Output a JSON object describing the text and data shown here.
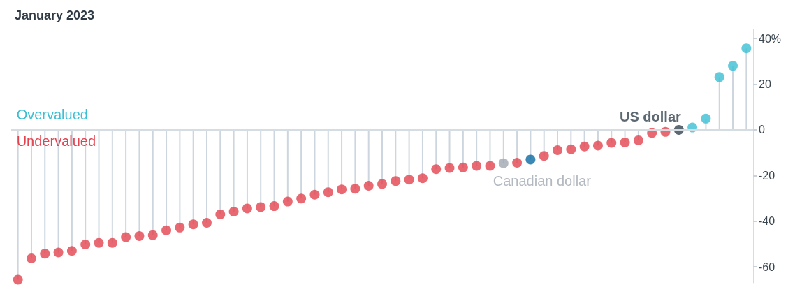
{
  "chart_data": {
    "type": "lollipop",
    "title": "January 2023",
    "categories": [
      null,
      null,
      null,
      null,
      null,
      null,
      null,
      null,
      null,
      null,
      null,
      null,
      null,
      null,
      null,
      null,
      null,
      null,
      null,
      null,
      null,
      null,
      null,
      null,
      null,
      null,
      null,
      null,
      null,
      null,
      null,
      null,
      null,
      null,
      null,
      null,
      null,
      null,
      null,
      null,
      null,
      null,
      null,
      null,
      null,
      null,
      null,
      null,
      null,
      null,
      null,
      null,
      null,
      null,
      null
    ],
    "series": [
      {
        "values": [
          -65.6,
          -56.3,
          -54.2,
          -53.7,
          -53.0,
          -50.2,
          -49.5,
          -49.5,
          -47.0,
          -46.5,
          -46.1,
          -44.0,
          -42.8,
          -41.4,
          -40.7,
          -37.0,
          -35.8,
          -34.4,
          -33.8,
          -33.4,
          -31.4,
          -30.1,
          -28.4,
          -27.3,
          -26.1,
          -25.8,
          -24.5,
          -23.7,
          -22.4,
          -21.8,
          -21.2,
          -17.2,
          -16.7,
          -16.5,
          -15.8,
          -15.8,
          null,
          -14.4,
          -13.0,
          -11.4,
          -8.9,
          -8.5,
          -7.3,
          -6.9,
          -5.7,
          -5.5,
          -4.6,
          -1.4,
          -0.9,
          null,
          1.0,
          4.9,
          23.1,
          28.0,
          35.7
        ],
        "colors": [
          "#e3434f",
          "#e3434f",
          "#e3434f",
          "#e3434f",
          "#e3434f",
          "#e3434f",
          "#e3434f",
          "#e3434f",
          "#e3434f",
          "#e3434f",
          "#e3434f",
          "#e3434f",
          "#e3434f",
          "#e3434f",
          "#e3434f",
          "#e3434f",
          "#e3434f",
          "#e3434f",
          "#e3434f",
          "#e3434f",
          "#e3434f",
          "#e3434f",
          "#e3434f",
          "#e3434f",
          "#e3434f",
          "#e3434f",
          "#e3434f",
          "#e3434f",
          "#e3434f",
          "#e3434f",
          "#e3434f",
          "#e3434f",
          "#e3434f",
          "#e3434f",
          "#e3434f",
          "#e3434f",
          null,
          "#e3434f",
          "#0b6aa2",
          "#e3434f",
          "#e3434f",
          "#e3434f",
          "#e3434f",
          "#e3434f",
          "#e3434f",
          "#e3434f",
          "#e3434f",
          "#e3434f",
          "#e3434f",
          null,
          "#3bbfd4",
          "#3bbfd4",
          "#3bbfd4",
          "#3bbfd4",
          "#3bbfd4"
        ]
      },
      {
        "name": "Canadian dollar",
        "color": "#a0a8b0",
        "values": [
          null,
          null,
          null,
          null,
          null,
          null,
          null,
          null,
          null,
          null,
          null,
          null,
          null,
          null,
          null,
          null,
          null,
          null,
          null,
          null,
          null,
          null,
          null,
          null,
          null,
          null,
          null,
          null,
          null,
          null,
          null,
          null,
          null,
          null,
          null,
          null,
          -14.6,
          null,
          null,
          null,
          null,
          null,
          null,
          null,
          null,
          null,
          null,
          null,
          null,
          null,
          null,
          null,
          null,
          null,
          null
        ]
      },
      {
        "name": "US dollar",
        "color": "#35444f",
        "values": [
          null,
          null,
          null,
          null,
          null,
          null,
          null,
          null,
          null,
          null,
          null,
          null,
          null,
          null,
          null,
          null,
          null,
          null,
          null,
          null,
          null,
          null,
          null,
          null,
          null,
          null,
          null,
          null,
          null,
          null,
          null,
          null,
          null,
          null,
          null,
          null,
          null,
          null,
          null,
          null,
          null,
          null,
          null,
          null,
          null,
          null,
          null,
          null,
          null,
          0,
          null,
          null,
          null,
          null,
          null
        ]
      }
    ],
    "ylim": [
      -67,
      44
    ],
    "yticks": [
      {
        "value": 40,
        "label": "40%"
      },
      20,
      0,
      -20,
      -40,
      -60
    ],
    "grid": false,
    "marker": "circle",
    "ref_lines": [
      {
        "axis": "y",
        "value": 0,
        "color": "#d5dde3"
      }
    ],
    "annotations": [
      "Overvalued",
      "Undervalued"
    ]
  }
}
